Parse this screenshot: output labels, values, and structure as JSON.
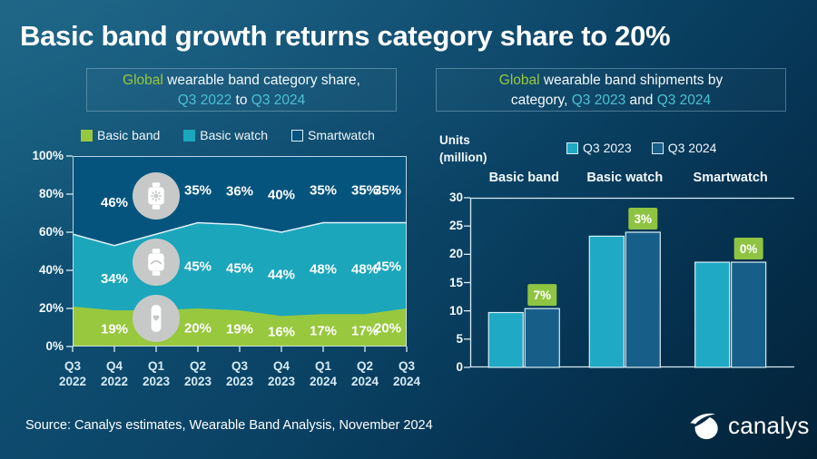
{
  "page": {
    "title": "Basic band growth returns category share to 20%",
    "source": "Source: Canalys estimates, Wearable Band Analysis, November 2024",
    "logo_text": "canalys"
  },
  "colors": {
    "basic_band": "#97c83e",
    "basic_watch": "#1ba6bc",
    "smartwatch": "#05547e",
    "bar_q3_2023": "#1fa9c4",
    "bar_q3_2024": "#175e88",
    "badge": "#8fc443",
    "boundary_line": "#dff0f7",
    "axis": "#d6ecf6",
    "green_text": "#97c83e",
    "teal_text": "#4cc0d4"
  },
  "left_chart": {
    "subtitle": {
      "l1_green": "Global",
      "l1_rest": " wearable band category share,",
      "l2_teal1": "Q3 2022",
      "l2_mid": " to ",
      "l2_teal2": "Q3 2024"
    }
  },
  "right_chart": {
    "subtitle": {
      "l1_green": "Global",
      "l1_rest": " wearable band shipments by",
      "l2_pre": "category, ",
      "l2_teal1": "Q3 2023",
      "l2_mid": " and ",
      "l2_teal2": "Q3 2024"
    },
    "units_line1": "Units",
    "units_line2": "(million)"
  },
  "chart_data": [
    {
      "id": "category-share-area",
      "type": "area",
      "stacked": true,
      "title": "Global wearable band category share, Q3 2022 to Q3 2024",
      "categories": [
        "Q3 2022",
        "Q4 2022",
        "Q1 2023",
        "Q2 2023",
        "Q3 2023",
        "Q4 2023",
        "Q1 2024",
        "Q2 2024",
        "Q3 2024"
      ],
      "series": [
        {
          "name": "Basic band",
          "values": [
            21,
            19,
            19,
            20,
            19,
            16,
            17,
            17,
            20
          ],
          "labels": [
            null,
            "19%",
            null,
            "20%",
            "19%",
            "16%",
            "17%",
            "17%",
            "20%"
          ]
        },
        {
          "name": "Basic watch",
          "values": [
            38,
            34,
            40,
            45,
            45,
            44,
            48,
            48,
            45
          ],
          "labels": [
            null,
            "34%",
            null,
            "45%",
            "45%",
            "44%",
            "48%",
            "48%",
            "45%"
          ]
        },
        {
          "name": "Smartwatch",
          "values": [
            41,
            46,
            41,
            35,
            36,
            40,
            35,
            35,
            35
          ],
          "labels": [
            null,
            "46%",
            null,
            "35%",
            "36%",
            "40%",
            "35%",
            "35%",
            "35%"
          ]
        }
      ],
      "ylim": [
        0,
        100
      ],
      "yticks": [
        "0%",
        "20%",
        "40%",
        "60%",
        "80%",
        "100%"
      ],
      "grid": false,
      "legend_position": "top",
      "overlay_icons": [
        "smartwatch-icon",
        "basic-watch-icon",
        "basic-band-icon"
      ]
    },
    {
      "id": "shipments-bar",
      "type": "bar",
      "title": "Global wearable band shipments by category, Q3 2023 and Q3 2024",
      "ylabel": "Units (million)",
      "categories": [
        "Basic band",
        "Basic watch",
        "Smartwatch"
      ],
      "series": [
        {
          "name": "Q3 2023",
          "values": [
            9.7,
            23.2,
            18.6
          ]
        },
        {
          "name": "Q3 2024",
          "values": [
            10.4,
            23.9,
            18.6
          ]
        }
      ],
      "growth_labels": [
        "7%",
        "3%",
        "0%"
      ],
      "ylim": [
        0,
        30
      ],
      "yticks": [
        0,
        5,
        10,
        15,
        20,
        25,
        30
      ],
      "grid": false,
      "legend_position": "top"
    }
  ]
}
